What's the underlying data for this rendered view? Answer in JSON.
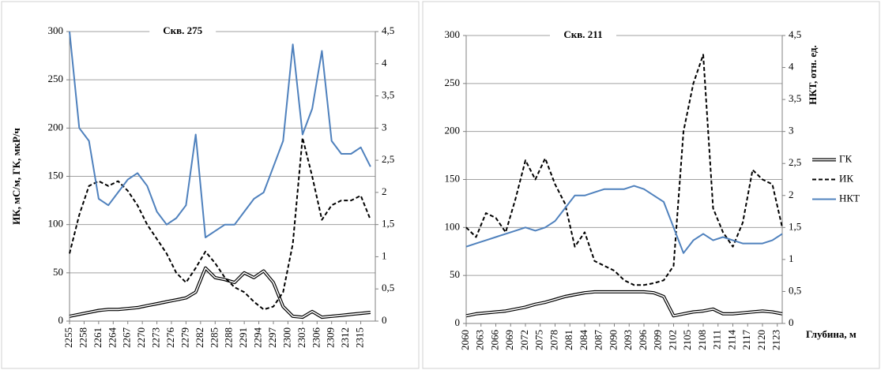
{
  "chart_data": [
    {
      "type": "line",
      "title": "Скв. 275",
      "y_label": "ИК, мС/м,  ГК, мкР/ч",
      "x": [
        2255,
        2257,
        2259,
        2261,
        2263,
        2265,
        2267,
        2269,
        2271,
        2273,
        2275,
        2277,
        2279,
        2281,
        2283,
        2285,
        2287,
        2289,
        2291,
        2293,
        2295,
        2297,
        2299,
        2301,
        2303,
        2305,
        2307,
        2309,
        2311,
        2313,
        2315,
        2317
      ],
      "xlim": [
        2255,
        2318
      ],
      "xticks": [
        2255,
        2258,
        2261,
        2264,
        2267,
        2270,
        2273,
        2276,
        2279,
        2282,
        2285,
        2288,
        2291,
        2294,
        2297,
        2300,
        2303,
        2306,
        2309,
        2312,
        2315
      ],
      "ylim": [
        0,
        300
      ],
      "yticks": [
        0,
        50,
        100,
        150,
        200,
        250,
        300
      ],
      "y2lim": [
        0,
        4.5
      ],
      "y2ticks": [
        0,
        {
          "value": 0.5,
          "label": "0,5"
        },
        1,
        {
          "value": 1.5,
          "label": "1,5"
        },
        2,
        {
          "value": 2.5,
          "label": "2,5"
        },
        3,
        {
          "value": 3.5,
          "label": "3,5"
        },
        4,
        {
          "value": 4.5,
          "label": "4,5"
        }
      ],
      "grid": true,
      "series": [
        {
          "name": "ГК",
          "color": "#000000",
          "style": "double",
          "values": [
            5,
            7,
            9,
            11,
            12,
            12,
            13,
            14,
            16,
            18,
            20,
            22,
            24,
            30,
            55,
            45,
            43,
            40,
            50,
            45,
            52,
            40,
            15,
            5,
            4,
            10,
            4,
            5,
            6,
            7,
            8,
            9
          ]
        },
        {
          "name": "ИК",
          "color": "#000000",
          "style": "dashed",
          "values": [
            70,
            110,
            140,
            145,
            140,
            145,
            135,
            120,
            100,
            85,
            70,
            50,
            40,
            55,
            72,
            60,
            45,
            35,
            30,
            20,
            12,
            15,
            30,
            80,
            190,
            150,
            105,
            120,
            125,
            125,
            130,
            105
          ]
        },
        {
          "name": "НКТ",
          "color": "#4f81bd",
          "style": "solid",
          "axis": "y2",
          "values": [
            4.5,
            3.0,
            2.8,
            1.9,
            1.8,
            2.0,
            2.2,
            2.3,
            2.1,
            1.7,
            1.5,
            1.6,
            1.8,
            2.9,
            1.3,
            1.4,
            1.5,
            1.5,
            1.7,
            1.9,
            2.0,
            2.4,
            2.8,
            4.3,
            2.9,
            3.3,
            4.2,
            2.8,
            2.6,
            2.6,
            2.7,
            2.4
          ]
        }
      ]
    },
    {
      "type": "line",
      "title": "Скв. 211",
      "y2_label": "НКТ, отн. ед.",
      "x_label": "Глубина, м",
      "x": [
        2060,
        2062,
        2064,
        2066,
        2068,
        2070,
        2072,
        2074,
        2076,
        2078,
        2080,
        2082,
        2084,
        2086,
        2088,
        2090,
        2092,
        2094,
        2096,
        2098,
        2100,
        2102,
        2104,
        2106,
        2108,
        2110,
        2112,
        2114,
        2116,
        2118,
        2120,
        2122,
        2124
      ],
      "xlim": [
        2060,
        2124
      ],
      "xticks": [
        2060,
        2063,
        2066,
        2069,
        2072,
        2075,
        2078,
        2081,
        2084,
        2087,
        2090,
        2093,
        2096,
        2099,
        2102,
        2105,
        2108,
        2111,
        2114,
        2117,
        2120,
        2123
      ],
      "ylim": [
        0,
        300
      ],
      "yticks": [
        0,
        50,
        100,
        150,
        200,
        250,
        300
      ],
      "y2lim": [
        0,
        4.5
      ],
      "y2ticks": [
        0,
        {
          "value": 0.5,
          "label": "0,5"
        },
        1,
        {
          "value": 1.5,
          "label": "1,5"
        },
        2,
        {
          "value": 2.5,
          "label": "2,5"
        },
        3,
        {
          "value": 3.5,
          "label": "3,5"
        },
        4,
        {
          "value": 4.5,
          "label": "4,5"
        }
      ],
      "grid": true,
      "legend": "right",
      "series": [
        {
          "name": "ГК",
          "color": "#000000",
          "style": "double",
          "values": [
            8,
            10,
            11,
            12,
            13,
            15,
            17,
            20,
            22,
            25,
            28,
            30,
            32,
            33,
            33,
            33,
            33,
            33,
            33,
            32,
            28,
            8,
            10,
            12,
            13,
            15,
            10,
            10,
            11,
            12,
            13,
            12,
            10
          ]
        },
        {
          "name": "ИК",
          "color": "#000000",
          "style": "dashed",
          "values": [
            100,
            90,
            115,
            110,
            95,
            130,
            170,
            150,
            172,
            145,
            125,
            80,
            95,
            65,
            60,
            55,
            45,
            40,
            40,
            42,
            45,
            60,
            200,
            250,
            280,
            120,
            95,
            80,
            105,
            160,
            150,
            145,
            100
          ]
        },
        {
          "name": "НКТ",
          "color": "#4f81bd",
          "style": "solid",
          "axis": "y2",
          "values": [
            1.2,
            1.25,
            1.3,
            1.35,
            1.4,
            1.45,
            1.5,
            1.45,
            1.5,
            1.6,
            1.8,
            2.0,
            2.0,
            2.05,
            2.1,
            2.1,
            2.1,
            2.15,
            2.1,
            2.0,
            1.9,
            1.5,
            1.1,
            1.3,
            1.4,
            1.3,
            1.35,
            1.3,
            1.25,
            1.25,
            1.25,
            1.3,
            1.4
          ]
        }
      ]
    }
  ]
}
